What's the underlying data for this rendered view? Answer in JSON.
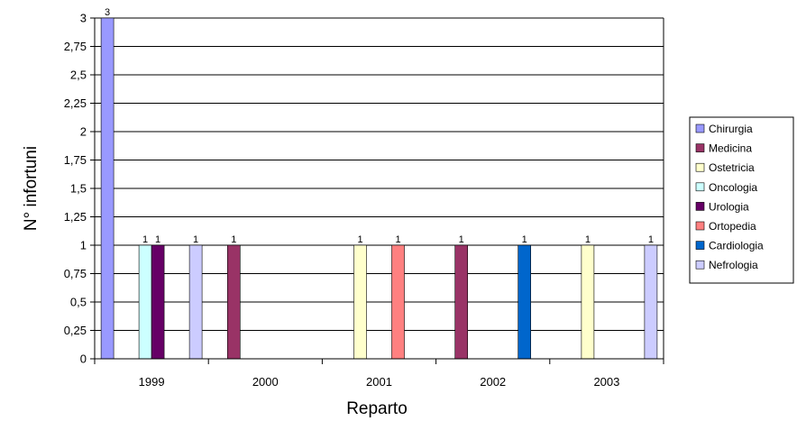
{
  "chart_data": {
    "type": "bar",
    "title": "",
    "xlabel": "Reparto",
    "ylabel": "N° infortuni",
    "ylim": [
      0,
      3
    ],
    "yticks": [
      "0",
      "0,25",
      "0,5",
      "0,75",
      "1",
      "1,25",
      "1,5",
      "1,75",
      "2",
      "2,25",
      "2,5",
      "2,75",
      "3"
    ],
    "categories": [
      "1999",
      "2000",
      "2001",
      "2002",
      "2003"
    ],
    "grid": true,
    "legend_position": "right",
    "series": [
      {
        "name": "Chirurgia",
        "color": "#9999ff",
        "values": [
          3,
          0,
          0,
          0,
          0
        ]
      },
      {
        "name": "Medicina",
        "color": "#993366",
        "values": [
          0,
          1,
          0,
          1,
          0
        ]
      },
      {
        "name": "Ostetricia",
        "color": "#ffffcc",
        "values": [
          0,
          0,
          1,
          0,
          1
        ]
      },
      {
        "name": "Oncologia",
        "color": "#ccffff",
        "values": [
          1,
          0,
          0,
          0,
          0
        ]
      },
      {
        "name": "Urologia",
        "color": "#660066",
        "values": [
          1,
          0,
          0,
          0,
          0
        ]
      },
      {
        "name": "Ortopedia",
        "color": "#ff8080",
        "values": [
          0,
          0,
          1,
          0,
          0
        ]
      },
      {
        "name": "Cardiologia",
        "color": "#0066cc",
        "values": [
          0,
          0,
          0,
          1,
          0
        ]
      },
      {
        "name": "Nefrologia",
        "color": "#ccccff",
        "values": [
          1,
          0,
          0,
          0,
          1
        ]
      }
    ],
    "data_labels": [
      {
        "series": "Chirurgia",
        "category": "1999",
        "text": "3"
      },
      {
        "series": "Oncologia",
        "category": "1999",
        "text": "1"
      },
      {
        "series": "Urologia",
        "category": "1999",
        "text": "1"
      },
      {
        "series": "Nefrologia",
        "category": "1999",
        "text": "1"
      },
      {
        "series": "Medicina",
        "category": "2000",
        "text": "1"
      },
      {
        "series": "Ostetricia",
        "category": "2001",
        "text": "1"
      },
      {
        "series": "Ortopedia",
        "category": "2001",
        "text": "1"
      },
      {
        "series": "Medicina",
        "category": "2002",
        "text": "1"
      },
      {
        "series": "Cardiologia",
        "category": "2002",
        "text": "1"
      },
      {
        "series": "Ostetricia",
        "category": "2003",
        "text": "1"
      },
      {
        "series": "Nefrologia",
        "category": "2003",
        "text": "1"
      }
    ]
  }
}
